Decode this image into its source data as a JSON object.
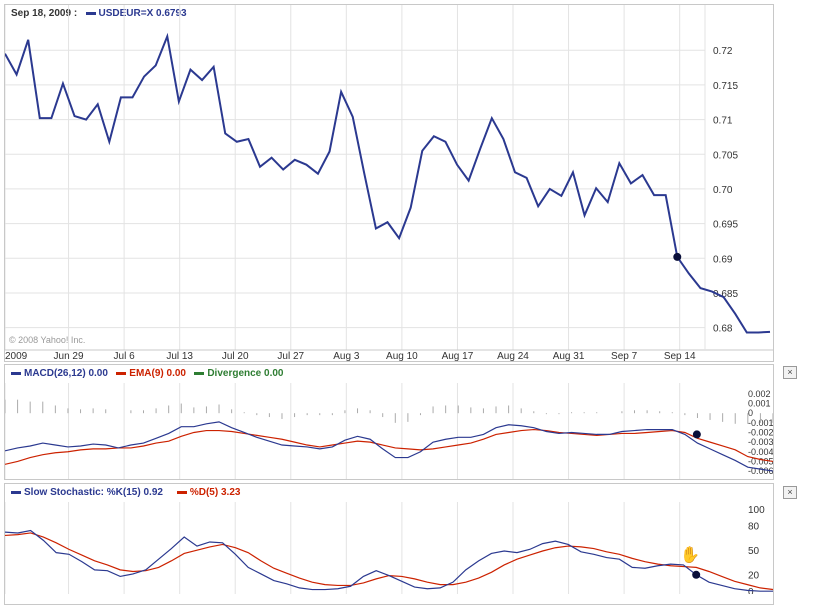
{
  "header": {
    "date": "Sep 18, 2009 :",
    "symbol_label": "USDEUR=X",
    "symbol_value": "0.6793",
    "series_color": "#2b3990"
  },
  "watermark": "© 2008 Yahoo! Inc.",
  "chart_data": [
    {
      "type": "line",
      "title": "",
      "x_tick_labels": [
        "2009",
        "Jun 29",
        "Jul 6",
        "Jul 13",
        "Jul 20",
        "Jul 27",
        "Aug 3",
        "Aug 10",
        "Aug 17",
        "Aug 24",
        "Aug 31",
        "Sep 7",
        "Sep 14"
      ],
      "y_tick_labels": [
        "0.72",
        "0.715",
        "0.71",
        "0.705",
        "0.70",
        "0.695",
        "0.69",
        "0.685",
        "0.68"
      ],
      "ylim": [
        0.6775,
        0.7245
      ],
      "grid": true,
      "series": [
        {
          "name": "USDEUR=X",
          "color": "#2b3990",
          "values": [
            0.7195,
            0.7165,
            0.7215,
            0.7102,
            0.7102,
            0.7152,
            0.7105,
            0.71,
            0.7122,
            0.7068,
            0.7132,
            0.7132,
            0.7162,
            0.7178,
            0.722,
            0.7126,
            0.7172,
            0.7157,
            0.7176,
            0.708,
            0.7068,
            0.7072,
            0.7032,
            0.7045,
            0.7028,
            0.7042,
            0.7035,
            0.7022,
            0.7054,
            0.714,
            0.7104,
            0.7022,
            0.6943,
            0.6952,
            0.6929,
            0.6973,
            0.7055,
            0.7076,
            0.7068,
            0.7035,
            0.7012,
            0.7058,
            0.7102,
            0.7072,
            0.7024,
            0.7016,
            0.6975,
            0.7,
            0.699,
            0.7024,
            0.6962,
            0.7001,
            0.6981,
            0.7037,
            0.7008,
            0.702,
            0.6991,
            0.6991,
            0.6902,
            0.6878,
            0.6857,
            0.6852,
            0.6844,
            0.682,
            0.6793,
            0.6793,
            0.6794
          ]
        }
      ],
      "marker": {
        "index": 58,
        "value": 0.6902
      }
    },
    {
      "type": "line",
      "title": "",
      "legend": [
        {
          "label": "MACD(26,12)",
          "value": "0.00",
          "color": "#2b3990"
        },
        {
          "label": "EMA(9)",
          "value": "0.00",
          "color": "#cc2200"
        },
        {
          "label": "Divergence",
          "value": "0.00",
          "color": "#2e7d32"
        }
      ],
      "y_tick_labels": [
        "0.002",
        "0.001",
        "0",
        "-0.001",
        "-0.002",
        "-0.003",
        "-0.004",
        "-0.005",
        "-0.006"
      ],
      "ylim": [
        -0.0062,
        0.0023
      ],
      "series": [
        {
          "name": "MACD(26,12)",
          "color": "#2b3990",
          "values": [
            -0.0039,
            -0.0036,
            -0.0034,
            -0.0031,
            -0.0033,
            -0.0035,
            -0.0034,
            -0.0032,
            -0.0033,
            -0.0036,
            -0.0033,
            -0.0031,
            -0.0026,
            -0.0021,
            -0.0014,
            -0.0014,
            -0.0011,
            -0.0009,
            -0.0015,
            -0.002,
            -0.0025,
            -0.0029,
            -0.0033,
            -0.0034,
            -0.0035,
            -0.0037,
            -0.0035,
            -0.0028,
            -0.0024,
            -0.0027,
            -0.0037,
            -0.0046,
            -0.0046,
            -0.004,
            -0.003,
            -0.0027,
            -0.0025,
            -0.0025,
            -0.0022,
            -0.0015,
            -0.0012,
            -0.0013,
            -0.0015,
            -0.0019,
            -0.0021,
            -0.002,
            -0.0021,
            -0.0022,
            -0.0022,
            -0.0019,
            -0.0018,
            -0.0017,
            -0.0017,
            -0.0017,
            -0.0022,
            -0.0031,
            -0.0037,
            -0.0043,
            -0.0049,
            -0.0056,
            -0.0058,
            -0.006
          ]
        },
        {
          "name": "EMA(9)",
          "color": "#cc2200",
          "values": [
            -0.0053,
            -0.005,
            -0.0046,
            -0.0043,
            -0.0041,
            -0.004,
            -0.0038,
            -0.0037,
            -0.0037,
            -0.0036,
            -0.0036,
            -0.0034,
            -0.0031,
            -0.0029,
            -0.0024,
            -0.002,
            -0.0018,
            -0.0018,
            -0.0019,
            -0.0021,
            -0.0023,
            -0.0025,
            -0.0027,
            -0.003,
            -0.0033,
            -0.0035,
            -0.0033,
            -0.0031,
            -0.0029,
            -0.003,
            -0.0033,
            -0.0036,
            -0.0037,
            -0.0038,
            -0.0037,
            -0.0035,
            -0.0033,
            -0.0031,
            -0.0027,
            -0.0022,
            -0.002,
            -0.0018,
            -0.0017,
            -0.0018,
            -0.002,
            -0.0021,
            -0.0022,
            -0.0023,
            -0.0022,
            -0.0021,
            -0.0021,
            -0.002,
            -0.0019,
            -0.0018,
            -0.002,
            -0.0026,
            -0.003,
            -0.0034,
            -0.0038,
            -0.0045,
            -0.0048,
            -0.005
          ]
        },
        {
          "name": "Divergence",
          "color": "#666666",
          "values": [
            0.0014,
            0.0014,
            0.0012,
            0.0012,
            0.0008,
            0.0005,
            0.0004,
            0.0005,
            0.0004,
            0.0,
            0.0003,
            0.0003,
            0.0005,
            0.0008,
            0.001,
            0.0006,
            0.0007,
            0.0009,
            0.0004,
            0.0001,
            -0.0002,
            -0.0004,
            -0.0006,
            -0.0004,
            -0.0002,
            -0.0002,
            -0.0002,
            0.0003,
            0.0005,
            0.0003,
            -0.0004,
            -0.001,
            -0.0009,
            -0.0002,
            0.0007,
            0.0008,
            0.0008,
            0.0006,
            0.0005,
            0.0007,
            0.0008,
            0.0005,
            0.0002,
            -0.0001,
            -0.0001,
            0.0001,
            0.0001,
            0.0001,
            0.0,
            0.0002,
            0.0003,
            0.0003,
            0.0002,
            0.0001,
            -0.0002,
            -0.0005,
            -0.0007,
            -0.0009,
            -0.0011,
            -0.0011,
            -0.001,
            -0.001
          ]
        }
      ],
      "marker": {
        "index": 54,
        "value": -0.0022
      }
    },
    {
      "type": "line",
      "title": "",
      "legend": [
        {
          "label": "Slow Stochastic: %K(15)",
          "value": "0.92",
          "color": "#2b3990"
        },
        {
          "label": "%D(5)",
          "value": "3.23",
          "color": "#cc2200"
        }
      ],
      "y_tick_labels": [
        "100",
        "80",
        "50",
        "20",
        "0"
      ],
      "ylim": [
        0,
        100
      ],
      "series": [
        {
          "name": "Slow Stochastic: %K(15)",
          "color": "#2b3990",
          "values": [
            73,
            72,
            75,
            63,
            48,
            46,
            37,
            27,
            26,
            19,
            22,
            27,
            40,
            53,
            67,
            56,
            61,
            60,
            46,
            30,
            22,
            14,
            10,
            5,
            3,
            3,
            4,
            7,
            19,
            26,
            20,
            13,
            6,
            4,
            5,
            12,
            27,
            38,
            47,
            50,
            48,
            52,
            59,
            62,
            58,
            49,
            46,
            42,
            40,
            30,
            29,
            32,
            34,
            33,
            21,
            12,
            8,
            4,
            2,
            1,
            1
          ]
        },
        {
          "name": "%D(5)",
          "color": "#cc2200",
          "values": [
            69,
            70,
            72,
            67,
            60,
            52,
            45,
            38,
            33,
            27,
            25,
            26,
            30,
            38,
            47,
            51,
            55,
            58,
            54,
            48,
            38,
            29,
            23,
            17,
            12,
            9,
            8,
            8,
            11,
            16,
            20,
            19,
            16,
            12,
            9,
            9,
            12,
            17,
            24,
            33,
            40,
            45,
            50,
            54,
            56,
            55,
            53,
            49,
            46,
            41,
            37,
            34,
            32,
            31,
            30,
            25,
            19,
            13,
            9,
            5,
            3
          ]
        }
      ],
      "marker": {
        "index": 54,
        "value": 21
      }
    }
  ],
  "close_label": "×",
  "cursor_icon": "hand-icon"
}
